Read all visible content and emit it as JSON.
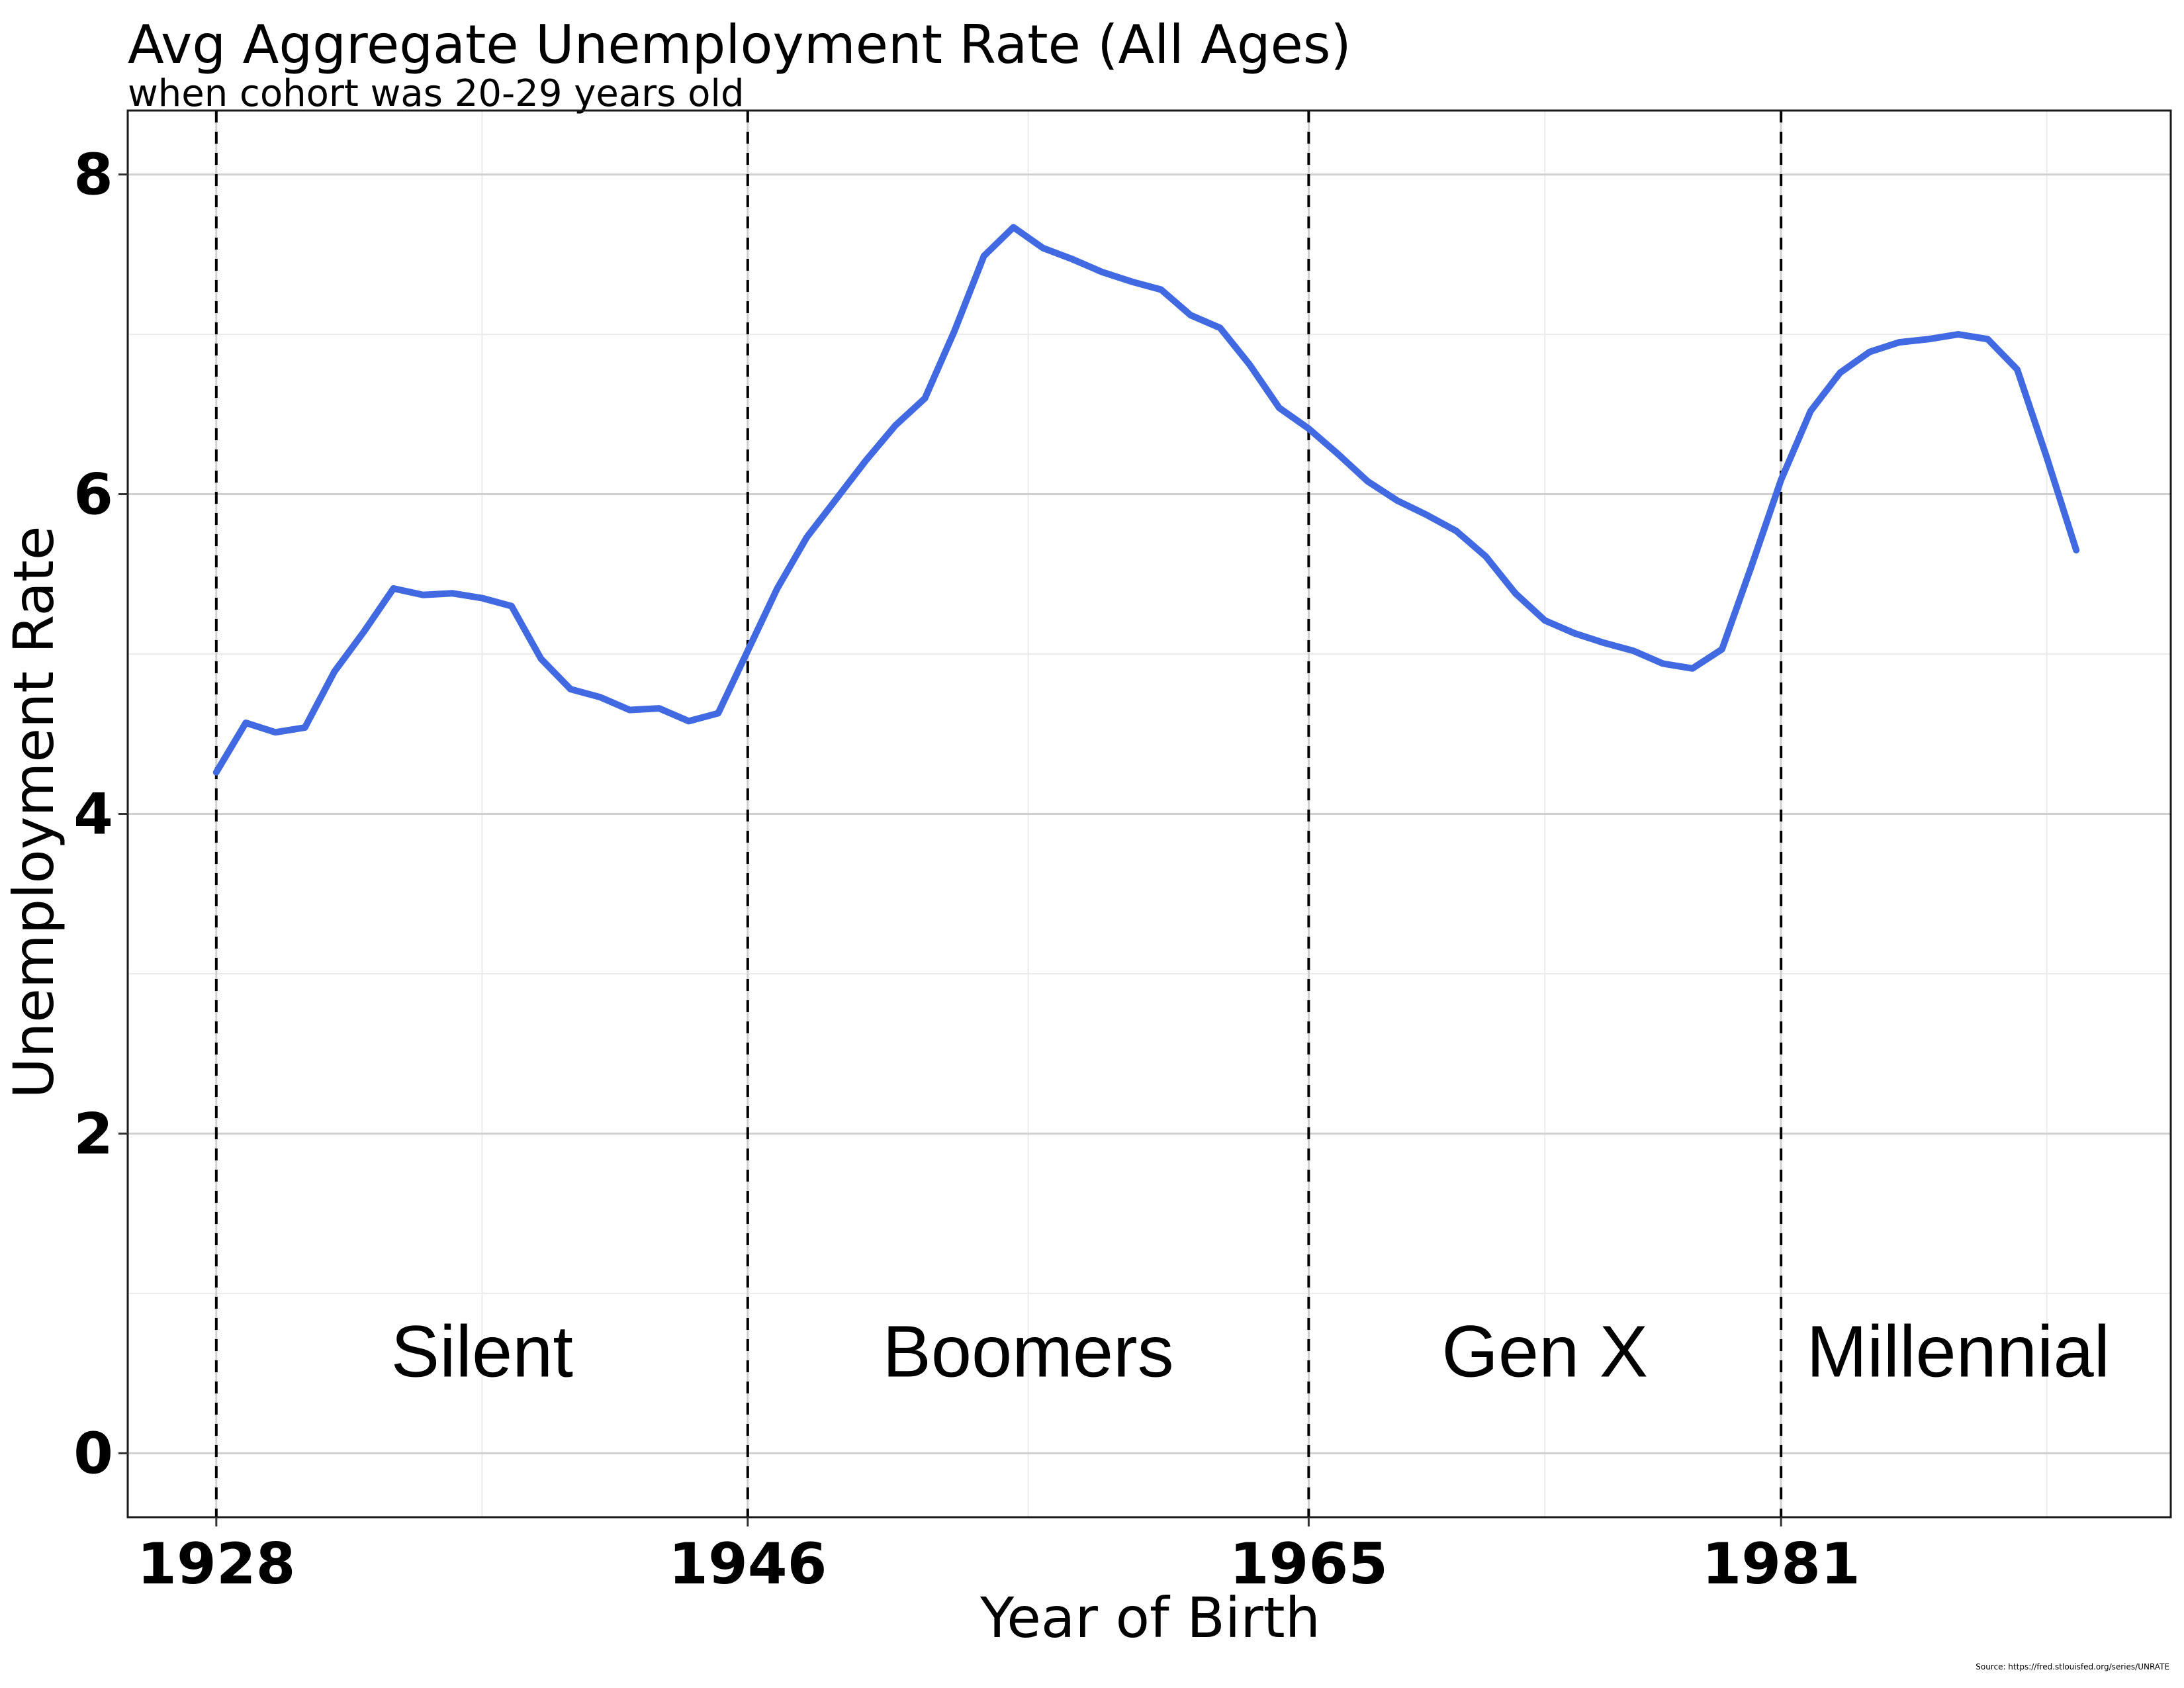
{
  "chart_data": {
    "type": "line",
    "title": "Avg Aggregate Unemployment Rate (All Ages)",
    "subtitle": "when cohort was 20-29 years old",
    "xlabel": "Year of Birth",
    "ylabel": "Unemployment Rate",
    "source": "Source: https://fred.stlouisfed.org/series/UNRATE",
    "xlim": [
      1925,
      1994.2
    ],
    "ylim": [
      -0.4,
      8.4
    ],
    "x_ticks": [
      1928,
      1946,
      1965,
      1981
    ],
    "y_ticks": [
      0,
      2,
      4,
      6,
      8
    ],
    "y_minor": [
      1,
      3,
      5,
      7
    ],
    "x_minor": [
      1937,
      1955.5,
      1973,
      1990
    ],
    "grid": true,
    "legend": "none",
    "line_color": "#4169E1",
    "generation_boundaries": [
      1928,
      1946,
      1965,
      1981
    ],
    "generations": [
      {
        "label": "Silent",
        "x": 1937
      },
      {
        "label": "Boomers",
        "x": 1955.5
      },
      {
        "label": "Gen X",
        "x": 1973
      },
      {
        "label": "Millennial",
        "x": 1987
      }
    ],
    "label_y": 0.48,
    "series": [
      {
        "x": [
          1928,
          1929,
          1930,
          1931,
          1932,
          1933,
          1934,
          1935,
          1936,
          1937,
          1938,
          1939,
          1940,
          1941,
          1942,
          1943,
          1944,
          1945,
          1946,
          1947,
          1948,
          1949,
          1950,
          1951,
          1952,
          1953,
          1954,
          1955,
          1956,
          1957,
          1958,
          1959,
          1960,
          1961,
          1962,
          1963,
          1964,
          1965,
          1966,
          1967,
          1968,
          1969,
          1970,
          1971,
          1972,
          1973,
          1974,
          1975,
          1976,
          1977,
          1978,
          1979,
          1980,
          1981,
          1982,
          1983,
          1984,
          1985,
          1986,
          1987,
          1988,
          1989,
          1990,
          1991
        ],
        "values": [
          4.26,
          4.57,
          4.51,
          4.54,
          4.89,
          5.14,
          5.41,
          5.37,
          5.38,
          5.35,
          5.3,
          4.97,
          4.78,
          4.73,
          4.65,
          4.66,
          4.58,
          4.63,
          5.02,
          5.41,
          5.73,
          5.97,
          6.21,
          6.43,
          6.6,
          7.02,
          7.49,
          7.67,
          7.54,
          7.47,
          7.39,
          7.33,
          7.28,
          7.12,
          7.04,
          6.81,
          6.54,
          6.41,
          6.25,
          6.08,
          5.96,
          5.87,
          5.77,
          5.61,
          5.38,
          5.21,
          5.13,
          5.07,
          5.02,
          4.94,
          4.91,
          5.03,
          5.55,
          6.09,
          6.52,
          6.76,
          6.89,
          6.95,
          6.97,
          7.0,
          6.97,
          6.78,
          6.23,
          5.65
        ]
      }
    ]
  }
}
